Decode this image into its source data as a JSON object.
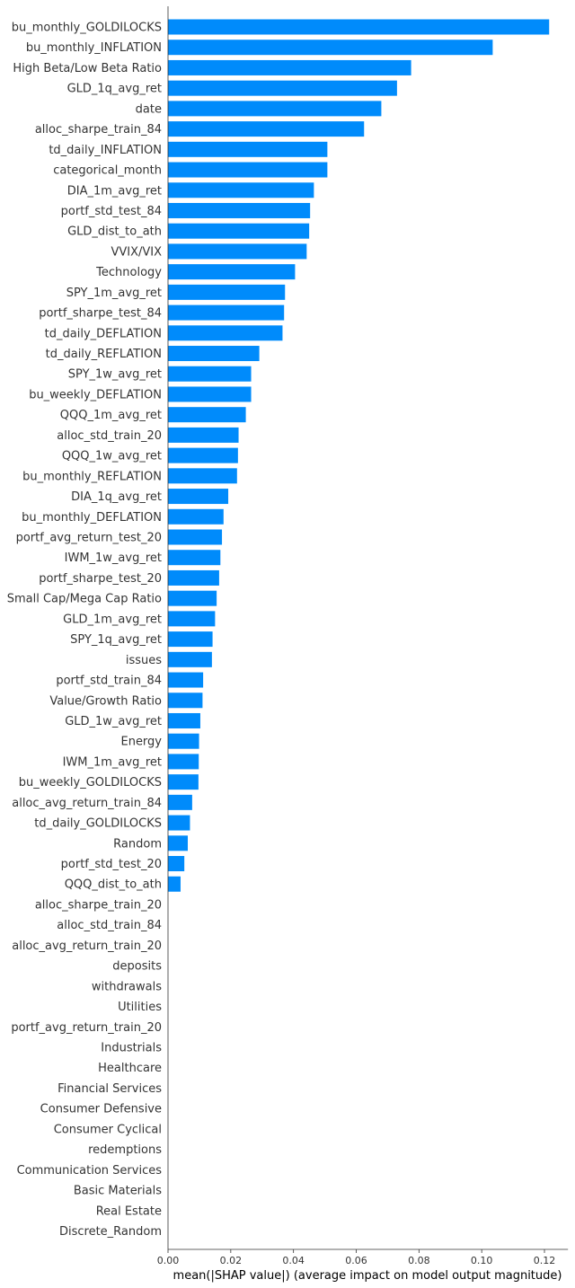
{
  "chart_data": {
    "type": "bar",
    "orientation": "horizontal",
    "title": "",
    "xlabel": "mean(|SHAP value|) (average impact on model output magnitude)",
    "ylabel": "",
    "xlim": [
      0,
      0.1275
    ],
    "xticks": [
      "0.00",
      "0.02",
      "0.04",
      "0.06",
      "0.08",
      "0.10",
      "0.12"
    ],
    "bar_color": "#008bfb",
    "grid": false,
    "categories": [
      "bu_monthly_GOLDILOCKS",
      "bu_monthly_INFLATION",
      "High Beta/Low Beta Ratio",
      "GLD_1q_avg_ret",
      "date",
      "alloc_sharpe_train_84",
      "td_daily_INFLATION",
      "categorical_month",
      "DIA_1m_avg_ret",
      "portf_std_test_84",
      "GLD_dist_to_ath",
      "VVIX/VIX",
      "Technology",
      "SPY_1m_avg_ret",
      "portf_sharpe_test_84",
      "td_daily_DEFLATION",
      "td_daily_REFLATION",
      "SPY_1w_avg_ret",
      "bu_weekly_DEFLATION",
      "QQQ_1m_avg_ret",
      "alloc_std_train_20",
      "QQQ_1w_avg_ret",
      "bu_monthly_REFLATION",
      "DIA_1q_avg_ret",
      "bu_monthly_DEFLATION",
      "portf_avg_return_test_20",
      "IWM_1w_avg_ret",
      "portf_sharpe_test_20",
      "Small Cap/Mega Cap Ratio",
      "GLD_1m_avg_ret",
      "SPY_1q_avg_ret",
      "issues",
      "portf_std_train_84",
      "Value/Growth Ratio",
      "GLD_1w_avg_ret",
      "Energy",
      "IWM_1m_avg_ret",
      "bu_weekly_GOLDILOCKS",
      "alloc_avg_return_train_84",
      "td_daily_GOLDILOCKS",
      "Random",
      "portf_std_test_20",
      "QQQ_dist_to_ath",
      "alloc_sharpe_train_20",
      "alloc_std_train_84",
      "alloc_avg_return_train_20",
      "deposits",
      "withdrawals",
      "Utilities",
      "portf_avg_return_train_20",
      "Industrials",
      "Healthcare",
      "Financial Services",
      "Consumer Defensive",
      "Consumer Cyclical",
      "redemptions",
      "Communication Services",
      "Basic Materials",
      "Real Estate",
      "Discrete_Random"
    ],
    "values": [
      0.1215,
      0.1035,
      0.0775,
      0.073,
      0.068,
      0.0625,
      0.0508,
      0.0508,
      0.0465,
      0.0453,
      0.045,
      0.0442,
      0.0405,
      0.0373,
      0.037,
      0.0365,
      0.0291,
      0.0265,
      0.0265,
      0.0248,
      0.0225,
      0.0223,
      0.022,
      0.0192,
      0.0177,
      0.0172,
      0.0167,
      0.0163,
      0.0155,
      0.015,
      0.0142,
      0.014,
      0.0112,
      0.011,
      0.0103,
      0.0099,
      0.0098,
      0.0097,
      0.0077,
      0.007,
      0.0063,
      0.0052,
      0.004,
      0.0,
      0.0,
      0.0,
      0.0,
      0.0,
      0.0,
      0.0,
      0.0,
      0.0,
      0.0,
      0.0,
      0.0,
      0.0,
      0.0,
      0.0,
      0.0,
      0.0
    ]
  }
}
